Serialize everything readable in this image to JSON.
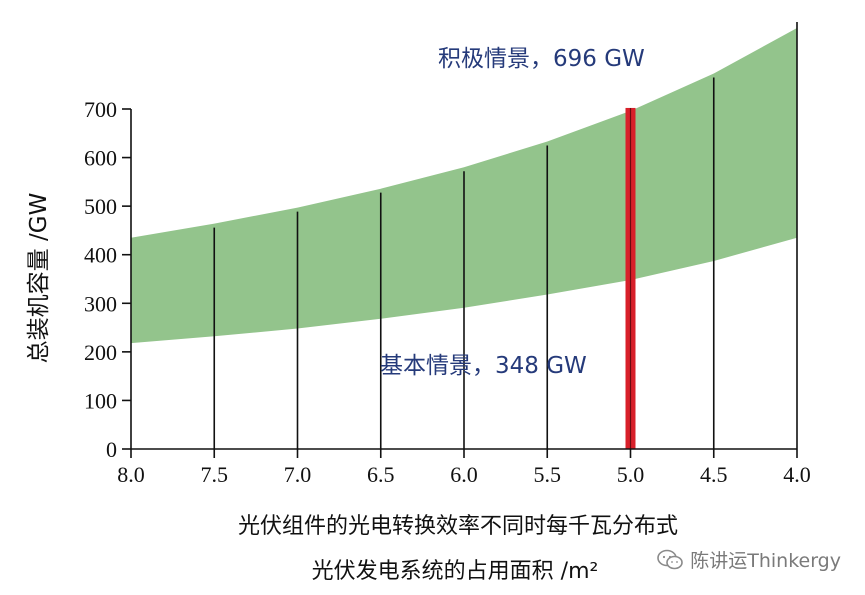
{
  "chart_data": {
    "type": "area",
    "title": "",
    "ylabel": "总装机容量 /GW",
    "xlabel_line1": "光伏组件的光电转换效率不同时每千瓦分布式",
    "xlabel_line2": "光伏发电系统的占用面积 /m²",
    "x_ticks": [
      "8.0",
      "7.5",
      "7.0",
      "6.5",
      "6.0",
      "5.5",
      "5.0",
      "4.5",
      "4.0"
    ],
    "y_ticks": [
      "0",
      "100",
      "200",
      "300",
      "400",
      "500",
      "600",
      "700"
    ],
    "xlim": [
      8.0,
      4.0
    ],
    "ylim": [
      0,
      700
    ],
    "band": {
      "x": [
        8.0,
        7.5,
        7.0,
        6.5,
        6.0,
        5.5,
        5.0,
        4.5,
        4.0
      ],
      "lower": [
        218,
        232,
        248,
        268,
        291,
        318,
        348,
        387,
        435
      ],
      "upper": [
        435,
        464,
        497,
        536,
        580,
        633,
        696,
        773,
        870
      ]
    },
    "vertical_lines_x": [
      7.5,
      7.0,
      6.5,
      6.0,
      5.5,
      5.0,
      4.5
    ],
    "highlight": {
      "x": 5.0,
      "low": 348,
      "high": 696
    },
    "annotations": {
      "upper": "积极情景，696 GW",
      "lower": "基本情景，348 GW"
    },
    "colors": {
      "band": "#93c48c",
      "highlight": "#d8202a",
      "lines": "#111111",
      "annotation": "#253a7a"
    }
  },
  "watermark": {
    "text": "陈讲运Thinkergy",
    "icon": "wechat-icon"
  }
}
